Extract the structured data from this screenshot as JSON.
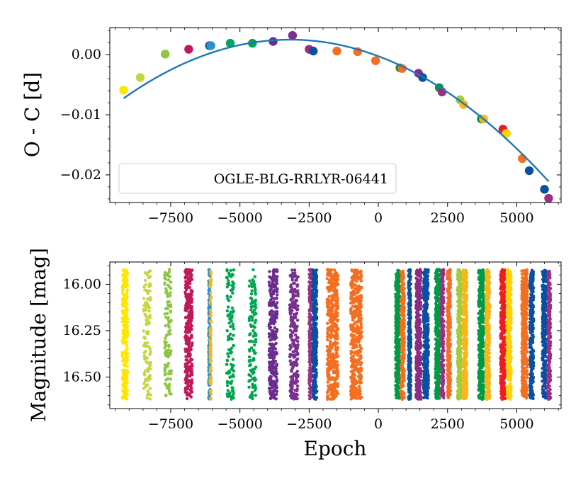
{
  "chart_data": [
    {
      "type": "scatter",
      "xlim": [
        -9700,
        6600
      ],
      "ylim": [
        -0.0246,
        0.0045
      ],
      "xticks": [
        -7500,
        -5000,
        -2500,
        0,
        2500,
        5000
      ],
      "xtick_labels": [
        "−7500",
        "−5000",
        "−2500",
        "0",
        "2500",
        "5000"
      ],
      "yticks": [
        0.0,
        -0.01,
        -0.02
      ],
      "ytick_labels": [
        "0.00",
        "−0.01",
        "−0.02"
      ],
      "xlabel": "",
      "ylabel": "O - C [d]",
      "legend": {
        "label": "OGLE-BLG-RRLYR-06441",
        "location": "lower-left"
      },
      "fit": {
        "type": "quadratic",
        "color": "#1f77b4",
        "x_range": [
          -9200,
          6150
        ],
        "coeffs": [
          -0.0002567,
          -1.7255e-06,
          -2.704e-10
        ]
      },
      "points": [
        {
          "x": -9200,
          "y": -0.0059,
          "color": "#ffe600"
        },
        {
          "x": -8600,
          "y": -0.0038,
          "color": "#c4d642"
        },
        {
          "x": -7700,
          "y": 0.0001,
          "color": "#8dc63f"
        },
        {
          "x": -6850,
          "y": 0.0009,
          "color": "#c0185b"
        },
        {
          "x": -6100,
          "y": 0.0015,
          "color": "#0a4fa0"
        },
        {
          "x": -6050,
          "y": 0.0015,
          "color": "#2a8fd0"
        },
        {
          "x": -5350,
          "y": 0.0019,
          "color": "#00a65a"
        },
        {
          "x": -4550,
          "y": 0.0019,
          "color": "#00a650"
        },
        {
          "x": -3800,
          "y": 0.0022,
          "color": "#6a2c91"
        },
        {
          "x": -3100,
          "y": 0.0032,
          "color": "#7b2f8f"
        },
        {
          "x": -2500,
          "y": 0.0009,
          "color": "#9b2f86"
        },
        {
          "x": -2350,
          "y": 0.0006,
          "color": "#0a4fa0"
        },
        {
          "x": -1500,
          "y": 0.0006,
          "color": "#f36f21"
        },
        {
          "x": -750,
          "y": 0.0005,
          "color": "#f36f21"
        },
        {
          "x": -100,
          "y": -0.001,
          "color": "#f36f21"
        },
        {
          "x": 780,
          "y": -0.0022,
          "color": "#009a44"
        },
        {
          "x": 860,
          "y": -0.0023,
          "color": "#f36f21"
        },
        {
          "x": 1450,
          "y": -0.0031,
          "color": "#8e2a84"
        },
        {
          "x": 1600,
          "y": -0.0038,
          "color": "#0a4fa0"
        },
        {
          "x": 2200,
          "y": -0.0055,
          "color": "#009a44"
        },
        {
          "x": 2300,
          "y": -0.0062,
          "color": "#9b2f86"
        },
        {
          "x": 2950,
          "y": -0.0075,
          "color": "#a3cc3a"
        },
        {
          "x": 3080,
          "y": -0.0083,
          "color": "#f7b718"
        },
        {
          "x": 3720,
          "y": -0.0107,
          "color": "#009a44"
        },
        {
          "x": 3800,
          "y": -0.0107,
          "color": "#f7b718"
        },
        {
          "x": 4500,
          "y": -0.0124,
          "color": "#ed1c24"
        },
        {
          "x": 4620,
          "y": -0.0131,
          "color": "#ffd200"
        },
        {
          "x": 5200,
          "y": -0.0173,
          "color": "#f36f21"
        },
        {
          "x": 5450,
          "y": -0.0193,
          "color": "#0a4fa0"
        },
        {
          "x": 6000,
          "y": -0.0224,
          "color": "#0a4fa0"
        },
        {
          "x": 6150,
          "y": -0.0239,
          "color": "#9b2f86"
        }
      ]
    },
    {
      "type": "scatter",
      "xlim": [
        -9700,
        6600
      ],
      "ylim": [
        16.67,
        15.88
      ],
      "y_inverted": true,
      "xticks": [
        -7500,
        -5000,
        -2500,
        0,
        2500,
        5000
      ],
      "xtick_labels": [
        "−7500",
        "−5000",
        "−2500",
        "0",
        "2500",
        "5000"
      ],
      "yticks": [
        16.0,
        16.25,
        16.5
      ],
      "ytick_labels": [
        "16.00",
        "16.25",
        "16.50"
      ],
      "xlabel": "Epoch",
      "ylabel": "Magnitude [mag]",
      "mag_range": [
        15.92,
        16.62
      ],
      "clusters": [
        {
          "x_center": -9150,
          "x_width": 200,
          "n": 260,
          "color": "#ffe600"
        },
        {
          "x_center": -8350,
          "x_width": 260,
          "n": 120,
          "color": "#c4d642"
        },
        {
          "x_center": -7600,
          "x_width": 240,
          "n": 110,
          "color": "#8dc63f"
        },
        {
          "x_center": -6850,
          "x_width": 260,
          "n": 300,
          "color": "#c0185b"
        },
        {
          "x_center": -6100,
          "x_width": 60,
          "n": 180,
          "color": "#2a8fd0"
        },
        {
          "x_center": -6060,
          "x_width": 40,
          "n": 90,
          "color": "#f7b718"
        },
        {
          "x_center": -5350,
          "x_width": 260,
          "n": 120,
          "color": "#00a650"
        },
        {
          "x_center": -4550,
          "x_width": 260,
          "n": 120,
          "color": "#00a650"
        },
        {
          "x_center": -3800,
          "x_width": 300,
          "n": 280,
          "color": "#6a2c91"
        },
        {
          "x_center": -3050,
          "x_width": 300,
          "n": 250,
          "color": "#7b2f8f"
        },
        {
          "x_center": -2460,
          "x_width": 80,
          "n": 160,
          "color": "#9b2f86"
        },
        {
          "x_center": -2300,
          "x_width": 160,
          "n": 320,
          "color": "#0a4fa0"
        },
        {
          "x_center": -1650,
          "x_width": 400,
          "n": 420,
          "color": "#f36f21"
        },
        {
          "x_center": -800,
          "x_width": 400,
          "n": 420,
          "color": "#f36f21"
        },
        {
          "x_center": 700,
          "x_width": 160,
          "n": 380,
          "color": "#009a44"
        },
        {
          "x_center": 880,
          "x_width": 120,
          "n": 300,
          "color": "#f36f21"
        },
        {
          "x_center": 1130,
          "x_width": 90,
          "n": 260,
          "color": "#0a4fa0"
        },
        {
          "x_center": 1450,
          "x_width": 180,
          "n": 380,
          "color": "#8e2a84"
        },
        {
          "x_center": 1720,
          "x_width": 180,
          "n": 380,
          "color": "#0a4fa0"
        },
        {
          "x_center": 2150,
          "x_width": 180,
          "n": 380,
          "color": "#009a44"
        },
        {
          "x_center": 2320,
          "x_width": 90,
          "n": 200,
          "color": "#9b2f86"
        },
        {
          "x_center": 2550,
          "x_width": 120,
          "n": 300,
          "color": "#f36f21"
        },
        {
          "x_center": 2930,
          "x_width": 140,
          "n": 380,
          "color": "#a3cc3a"
        },
        {
          "x_center": 3130,
          "x_width": 140,
          "n": 380,
          "color": "#f7b718"
        },
        {
          "x_center": 3720,
          "x_width": 200,
          "n": 400,
          "color": "#009a44"
        },
        {
          "x_center": 3950,
          "x_width": 150,
          "n": 320,
          "color": "#f7b718"
        },
        {
          "x_center": 4500,
          "x_width": 180,
          "n": 380,
          "color": "#ed1c24"
        },
        {
          "x_center": 4720,
          "x_width": 160,
          "n": 340,
          "color": "#ffd200"
        },
        {
          "x_center": 5280,
          "x_width": 200,
          "n": 360,
          "color": "#f36f21"
        },
        {
          "x_center": 5540,
          "x_width": 140,
          "n": 260,
          "color": "#0a4fa0"
        },
        {
          "x_center": 6000,
          "x_width": 160,
          "n": 300,
          "color": "#0a4fa0"
        },
        {
          "x_center": 6170,
          "x_width": 100,
          "n": 240,
          "color": "#9b2f86"
        }
      ]
    }
  ]
}
